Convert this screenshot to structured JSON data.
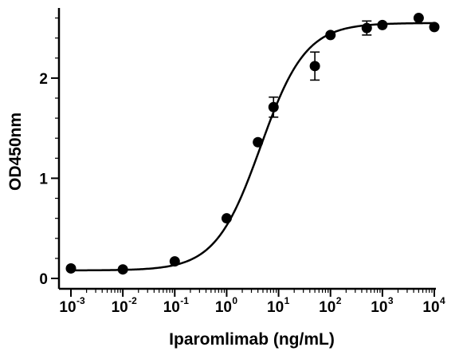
{
  "chart_data": {
    "type": "scatter",
    "xlabel": "Iparomlimab (ng/mL)",
    "ylabel": "OD450nm",
    "x_scale": "log",
    "xlim": [
      0.001,
      10000
    ],
    "ylim": [
      0,
      2.7
    ],
    "x_ticks": [
      {
        "value": 0.001,
        "base": "10",
        "exp": "-3"
      },
      {
        "value": 0.01,
        "base": "10",
        "exp": "-2"
      },
      {
        "value": 0.1,
        "base": "10",
        "exp": "-1"
      },
      {
        "value": 1,
        "base": "10",
        "exp": "0"
      },
      {
        "value": 10,
        "base": "10",
        "exp": "1"
      },
      {
        "value": 100,
        "base": "10",
        "exp": "2"
      },
      {
        "value": 1000,
        "base": "10",
        "exp": "3"
      },
      {
        "value": 10000,
        "base": "10",
        "exp": "4"
      }
    ],
    "y_ticks": [
      {
        "value": 0,
        "label": "0"
      },
      {
        "value": 1,
        "label": "1"
      },
      {
        "value": 2,
        "label": "2"
      }
    ],
    "y_minor_step": 0.2,
    "grid": false,
    "series": [
      {
        "points": [
          {
            "x": 0.001,
            "y": 0.1,
            "err": 0
          },
          {
            "x": 0.01,
            "y": 0.09,
            "err": 0
          },
          {
            "x": 0.1,
            "y": 0.17,
            "err": 0
          },
          {
            "x": 1,
            "y": 0.6,
            "err": 0
          },
          {
            "x": 4,
            "y": 1.36,
            "err": 0
          },
          {
            "x": 8,
            "y": 1.71,
            "err": 0.1
          },
          {
            "x": 50,
            "y": 2.12,
            "err": 0.14
          },
          {
            "x": 100,
            "y": 2.43,
            "err": 0
          },
          {
            "x": 500,
            "y": 2.5,
            "err": 0.07
          },
          {
            "x": 1000,
            "y": 2.53,
            "err": 0
          },
          {
            "x": 5000,
            "y": 2.6,
            "err": 0
          },
          {
            "x": 10000,
            "y": 2.51,
            "err": 0
          }
        ],
        "fit": {
          "model": "4PL",
          "bottom": 0.08,
          "top": 2.55,
          "ec50": 4.5,
          "hill": 1.0
        }
      }
    ],
    "colors": {
      "axes": "#000000",
      "points": "#000000",
      "curve": "#000000"
    }
  }
}
